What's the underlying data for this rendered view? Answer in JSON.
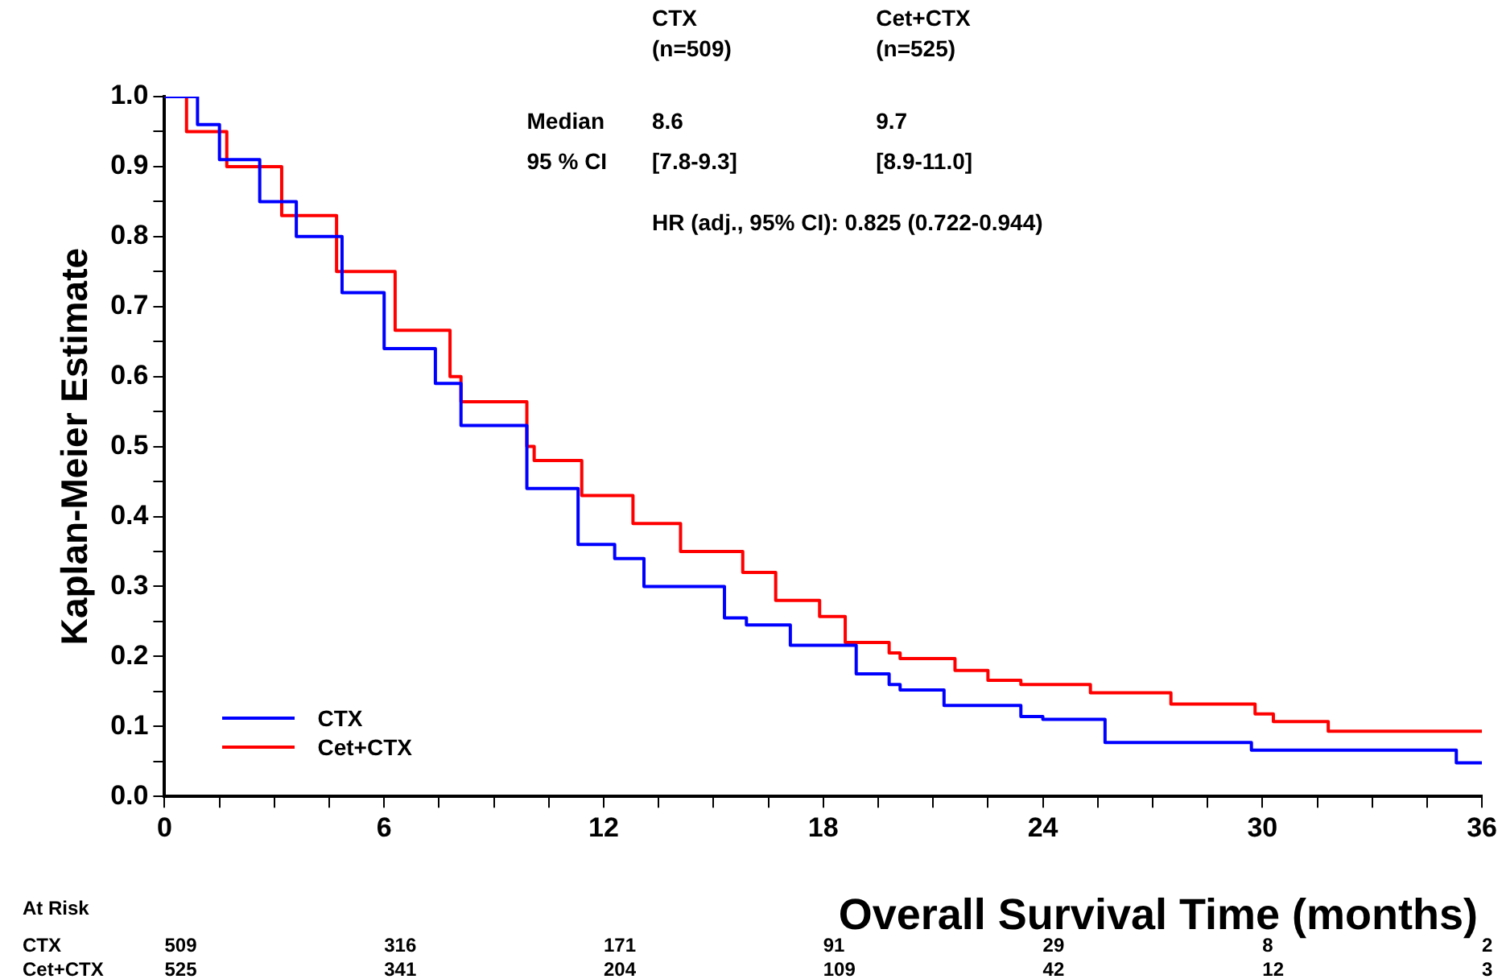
{
  "chart_data": {
    "type": "step",
    "xlabel": "Overall Survival Time (months)",
    "ylabel": "Kaplan-Meier Estimate",
    "xlim": [
      0,
      36
    ],
    "xticks": [
      0,
      {
        "value": 1.5,
        "label": null
      },
      {
        "value": 3,
        "label": null
      },
      {
        "value": 4.5,
        "label": null
      },
      6,
      {
        "value": 7.5,
        "label": null
      },
      {
        "value": 9,
        "label": null
      },
      {
        "value": 10.5,
        "label": null
      },
      12,
      {
        "value": 13.5,
        "label": null
      },
      {
        "value": 15,
        "label": null
      },
      {
        "value": 16.5,
        "label": null
      },
      18,
      {
        "value": 19.5,
        "label": null
      },
      {
        "value": 21,
        "label": null
      },
      {
        "value": 22.5,
        "label": null
      },
      24,
      {
        "value": 25.5,
        "label": null
      },
      {
        "value": 27,
        "label": null
      },
      {
        "value": 28.5,
        "label": null
      },
      30,
      {
        "value": 31.5,
        "label": null
      },
      {
        "value": 33,
        "label": null
      },
      {
        "value": 34.5,
        "label": null
      },
      36
    ],
    "ylim": [
      0,
      1
    ],
    "yticks": [
      {
        "value": 0,
        "label": "0.0"
      },
      {
        "value": 0.05,
        "label": null
      },
      {
        "value": 0.1,
        "label": "0.1"
      },
      {
        "value": 0.15,
        "label": null
      },
      {
        "value": 0.2,
        "label": "0.2"
      },
      {
        "value": 0.25,
        "label": null
      },
      {
        "value": 0.3,
        "label": "0.3"
      },
      {
        "value": 0.35,
        "label": null
      },
      {
        "value": 0.4,
        "label": "0.4"
      },
      {
        "value": 0.45,
        "label": null
      },
      {
        "value": 0.5,
        "label": "0.5"
      },
      {
        "value": 0.55,
        "label": null
      },
      {
        "value": 0.6,
        "label": "0.6"
      },
      {
        "value": 0.65,
        "label": null
      },
      {
        "value": 0.7,
        "label": "0.7"
      },
      {
        "value": 0.75,
        "label": null
      },
      {
        "value": 0.8,
        "label": "0.8"
      },
      {
        "value": 0.85,
        "label": null
      },
      {
        "value": 0.9,
        "label": "0.9"
      },
      {
        "value": 0.95,
        "label": null
      },
      {
        "value": 1,
        "label": "1.0"
      }
    ],
    "grid": false,
    "legend": "bottom left",
    "series": [
      {
        "name": "CTX",
        "color": "#0000ff",
        "x": [
          0,
          0.2,
          0.9,
          1.5,
          2.6,
          3.6,
          4.85,
          6.0,
          7.4,
          8.1,
          9.9,
          11.3,
          12.3,
          13.1,
          15.3,
          15.9,
          17.1,
          18.9,
          19.8,
          20.1,
          21.3,
          21.6,
          23.4,
          24.0,
          25.7,
          29.7,
          35.3,
          36
        ],
        "values": [
          1,
          1,
          0.96,
          0.91,
          0.85,
          0.8,
          0.72,
          0.64,
          0.59,
          0.53,
          0.44,
          0.36,
          0.34,
          0.3,
          0.255,
          0.245,
          0.216,
          0.175,
          0.16,
          0.152,
          0.13,
          0.13,
          0.114,
          0.11,
          0.077,
          0.066,
          0.048,
          0.048
        ]
      },
      {
        "name": "Cet+CTX",
        "color": "#ff0000",
        "x": [
          0,
          0.6,
          1.7,
          3.2,
          4.7,
          6.3,
          7.8,
          8.1,
          9.9,
          10.1,
          11.4,
          12.8,
          14.1,
          15.8,
          16.7,
          17.9,
          18.6,
          19.8,
          20.1,
          21.6,
          22.5,
          23.4,
          25.3,
          27.5,
          29.8,
          30.3,
          31.8,
          36
        ],
        "values": [
          1,
          0.95,
          0.9,
          0.83,
          0.75,
          0.666,
          0.6,
          0.564,
          0.5,
          0.48,
          0.43,
          0.39,
          0.35,
          0.32,
          0.28,
          0.257,
          0.22,
          0.205,
          0.197,
          0.18,
          0.166,
          0.16,
          0.148,
          0.132,
          0.118,
          0.107,
          0.093,
          0.093
        ]
      }
    ],
    "annotations": [
      "CTX\n(n=509)",
      "Cet+CTX\n(n=525)",
      "Median",
      "8.6",
      "9.7",
      "95 % CI",
      "[7.8-9.3]",
      "[8.9-11.0]",
      "HR (adj., 95% CI): 0.825 (0.722-0.944)",
      "At Risk",
      "CTX",
      "509",
      "316",
      "171",
      "91",
      "29",
      "8",
      "2",
      "Cet+CTX",
      "525",
      "341",
      "204",
      "109",
      "42",
      "12",
      "3"
    ]
  }
}
